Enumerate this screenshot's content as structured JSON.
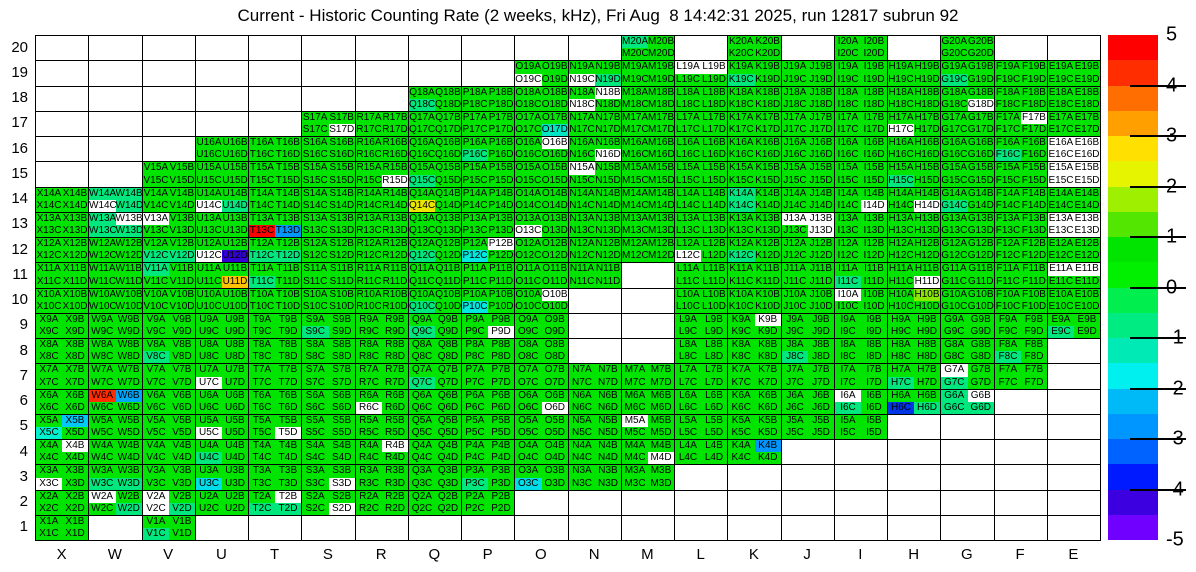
{
  "title": "Current - Historic Counting Rate (2 weeks, kHz), Fri Aug  8 14:42:31 2025, run 12817 subrun 92",
  "chart_data": {
    "type": "heatmap",
    "x_categories": [
      "X",
      "W",
      "V",
      "U",
      "T",
      "S",
      "R",
      "Q",
      "P",
      "O",
      "N",
      "M",
      "L",
      "K",
      "J",
      "I",
      "H",
      "G",
      "F",
      "E"
    ],
    "y_categories": [
      "20",
      "19",
      "18",
      "17",
      "16",
      "15",
      "14",
      "13",
      "12",
      "11",
      "10",
      "9",
      "8",
      "7",
      "6",
      "5",
      "4",
      "3",
      "2",
      "1"
    ],
    "sub_cells": [
      "A",
      "B",
      "C",
      "D"
    ],
    "sub_cell_note": "each grid box holds 4 cells labeled column+row+sub, e.g. X14A X14B / X14C X14D",
    "rows_present": {
      "20": "MKIG",
      "19": "ONMLKJIHGFE",
      "18": "QPONMLKJIHGFE",
      "17": "SRQPONMLKJIHGFE",
      "16": "UTSRQPONMLKJIHGFE",
      "15": "VUTSRQPONMLKJIHGFE",
      "14": "XWVUTSRQPONMLKJIHGFE",
      "13": "XWVUTSRQPONMLKJIHGFE",
      "12": "XWVUTSRQPONMLKJIHGFE",
      "11": "XWVUTSRQPONLKJIHGFE",
      "10": "XWVUTSRQPOLKJIHGFE",
      "9": "XWVUTSRQPOLKJIHGFE",
      "8": "XWVUTSRQPOLKJIHGF",
      "7": "XWVUTSRQPONMLKJIHGF",
      "6": "XWVUTSRQPONMLKJIHG",
      "5": "XWVUTSRQPONMLKJI",
      "4": "XWVUTSRQPONMLK",
      "3": "XWVUTSRQPONM",
      "2": "XWVUTSRQP",
      "1": "XV"
    },
    "default_cell_color": "#00e400",
    "default_value_approx": 0.3,
    "tint_color": "#00e87d",
    "tint_value_approx": -0.6,
    "white_cell_color": "#ffffff",
    "white_cell_meaning": "zero / no data bin (label still drawn)",
    "white_cells": [
      "S17D",
      "R15D",
      "O16B",
      "N16D",
      "N15A",
      "N18B",
      "N18C",
      "O19C",
      "N19C",
      "L19A",
      "L19B",
      "G18D",
      "F17B",
      "H17C",
      "H11D",
      "E16A",
      "E16B",
      "E16C",
      "E16D",
      "E15A",
      "E15B",
      "E15C",
      "E15D",
      "E13A",
      "E13B",
      "E13C",
      "E13D",
      "E11A",
      "E11B",
      "W14C",
      "U14C",
      "V13A",
      "W13B",
      "O13C",
      "P12B",
      "L12C",
      "U12C",
      "J13A",
      "J13B",
      "J13D",
      "I14D",
      "H14D",
      "I10A",
      "O10B",
      "P9D",
      "K9B",
      "U7C",
      "U5C",
      "G7A",
      "I6A",
      "G6B",
      "O6D",
      "R6C",
      "M5A",
      "T5D",
      "X4B",
      "R4B",
      "M4D",
      "X3C",
      "S3D",
      "W2A",
      "V2A",
      "V2C",
      "T2B",
      "S2D"
    ],
    "tint_cells": [
      "W14A",
      "W14B",
      "W14D",
      "U14D",
      "W13A",
      "W13C",
      "W13D",
      "M20A",
      "N19D",
      "K19C",
      "G19C",
      "F16C",
      "G14C",
      "H15C",
      "Q18C",
      "P16C",
      "Q15C",
      "V12C",
      "V12D",
      "T12C",
      "T12D",
      "T11C",
      "V11A",
      "K14A",
      "K14C",
      "Q12C",
      "K12C",
      "Q10C",
      "U4C",
      "W3C",
      "W3D",
      "P3C",
      "T2C",
      "T2D",
      "W2D",
      "V2D",
      "V1C",
      "Q9C",
      "S9C",
      "V8C",
      "Q7C",
      "H7C",
      "G7C",
      "G6A",
      "G6C",
      "G6D",
      "H6D",
      "I6C",
      "J8C",
      "F8C",
      "E9C",
      "I11C"
    ],
    "special_cells": {
      "T13C": [
        "#ff0000",
        5.0
      ],
      "W6A": [
        "#ff2d00",
        4.6
      ],
      "U11D": [
        "#ffc300",
        3.2
      ],
      "Q14C": [
        "#e9e600",
        2.4
      ],
      "H10B": [
        "#8ae800",
        1.8
      ],
      "X5C": [
        "#00f2cc",
        -1.3
      ],
      "O17D": [
        "#00e6c4",
        -1.2
      ],
      "P12C": [
        "#00e8e0",
        -1.6
      ],
      "P10C": [
        "#00e8e0",
        -1.6
      ],
      "U3C": [
        "#00dce8",
        -1.7
      ],
      "O3C": [
        "#00dce8",
        -1.7
      ],
      "X5B": [
        "#00c8f8",
        -2.1
      ],
      "W6B": [
        "#00a6f8",
        -2.4
      ],
      "T13D": [
        "#0096ff",
        -2.7
      ],
      "K4B": [
        "#0096ff",
        -2.7
      ],
      "H6C": [
        "#0036e8",
        -3.6
      ],
      "U12D": [
        "#3400d4",
        -4.3
      ]
    },
    "colorbar": {
      "max": 5,
      "min": -5,
      "tick_labels": [
        "5",
        "4",
        "3",
        "2",
        "1",
        "0",
        "-1",
        "-2",
        "-3",
        "-4",
        "-5"
      ],
      "band_colors_top_to_bottom": [
        "#ff0000",
        "#ff2d00",
        "#ff6e00",
        "#ffa000",
        "#ffe000",
        "#e6f400",
        "#9ef000",
        "#52e600",
        "#00e400",
        "#00f000",
        "#00ee4e",
        "#00ec82",
        "#00eab6",
        "#00f0f0",
        "#00baf8",
        "#0096ff",
        "#0062ff",
        "#001aff",
        "#3c00e0",
        "#7000ff"
      ]
    }
  }
}
